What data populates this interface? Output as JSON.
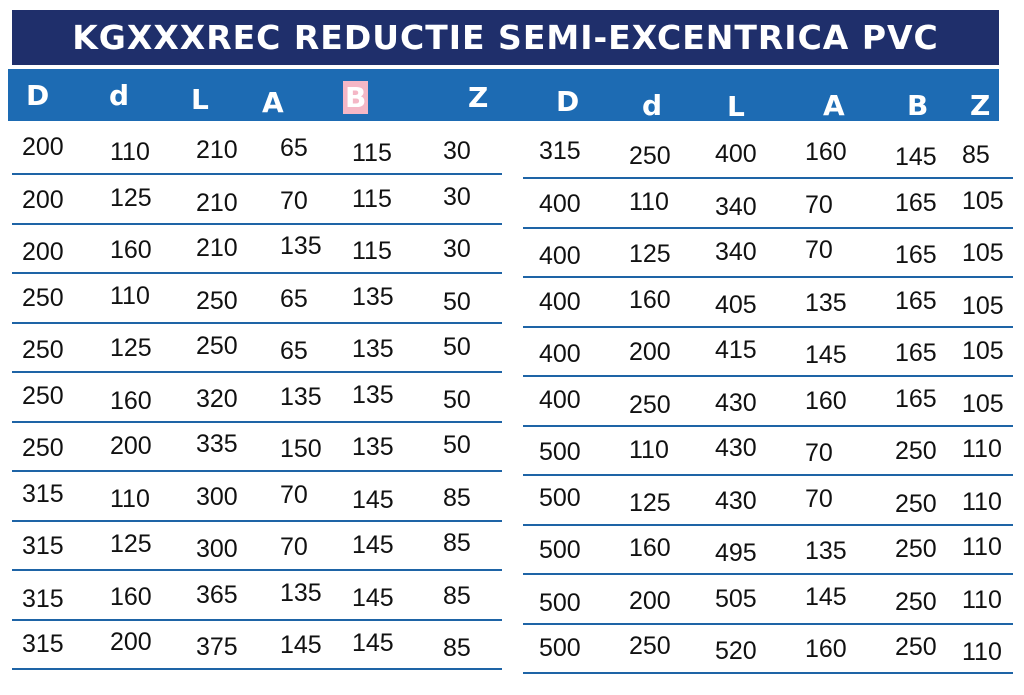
{
  "title": "KGXXXREC  REDUCTIE SEMI-EXCENTRICA PVC",
  "headers": {
    "left": [
      "D",
      "d",
      "L",
      "A",
      "B",
      "Z"
    ],
    "right": [
      "D",
      "d",
      "L",
      "A",
      "B",
      "Z"
    ]
  },
  "left_rows": [
    [
      "200",
      "110",
      "210",
      "65",
      "115",
      "30"
    ],
    [
      "200",
      "125",
      "210",
      "70",
      "115",
      "30"
    ],
    [
      "200",
      "160",
      "210",
      "135",
      "115",
      "30"
    ],
    [
      "250",
      "110",
      "250",
      "65",
      "135",
      "50"
    ],
    [
      "250",
      "125",
      "250",
      "65",
      "135",
      "50"
    ],
    [
      "250",
      "160",
      "320",
      "135",
      "135",
      "50"
    ],
    [
      "250",
      "200",
      "335",
      "150",
      "135",
      "50"
    ],
    [
      "315",
      "110",
      "300",
      "70",
      "145",
      "85"
    ],
    [
      "315",
      "125",
      "300",
      "70",
      "145",
      "85"
    ],
    [
      "315",
      "160",
      "365",
      "135",
      "145",
      "85"
    ],
    [
      "315",
      "200",
      "375",
      "145",
      "145",
      "85"
    ]
  ],
  "right_rows": [
    [
      "315",
      "250",
      "400",
      "160",
      "145",
      "85"
    ],
    [
      "400",
      "110",
      "340",
      "70",
      "165",
      "105"
    ],
    [
      "400",
      "125",
      "340",
      "70",
      "165",
      "105"
    ],
    [
      "400",
      "160",
      "405",
      "135",
      "165",
      "105"
    ],
    [
      "400",
      "200",
      "415",
      "145",
      "165",
      "105"
    ],
    [
      "400",
      "250",
      "430",
      "160",
      "165",
      "105"
    ],
    [
      "500",
      "110",
      "430",
      "70",
      "250",
      "110"
    ],
    [
      "500",
      "125",
      "430",
      "70",
      "250",
      "110"
    ],
    [
      "500",
      "160",
      "495",
      "135",
      "250",
      "110"
    ],
    [
      "500",
      "200",
      "505",
      "145",
      "250",
      "110"
    ],
    [
      "500",
      "250",
      "520",
      "160",
      "250",
      "110"
    ]
  ],
  "colors": {
    "title_bg": "#1f2f6b",
    "header_bg": "#1d6bb3",
    "rule": "#1e64a6",
    "highlight": "#f4b7c6"
  }
}
